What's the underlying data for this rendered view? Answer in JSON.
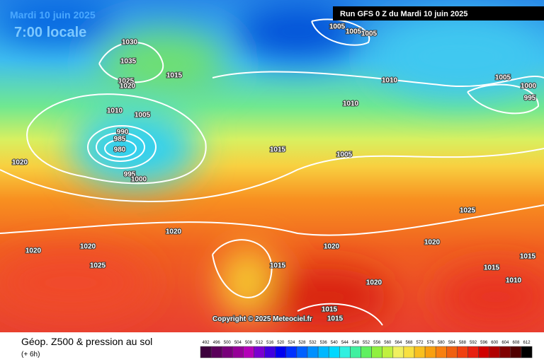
{
  "header": {
    "date": "Mardi 10 juin 2025",
    "time": "7:00 locale",
    "run": "Run GFS 0 Z du Mardi 10 juin 2025"
  },
  "copyright": "Copyright © 2025 Meteociel.fr",
  "footer": {
    "title": "Géop. Z500 & pression au sol",
    "step": "(+ 6h)"
  },
  "isobars": [
    1030,
    1035,
    1025,
    1020,
    1015,
    1010,
    1005,
    990,
    985,
    980,
    995,
    1000,
    1020,
    1020,
    1020,
    1020,
    1025,
    1015,
    1005,
    1005,
    1005,
    1010,
    1010,
    1005,
    1005,
    1000,
    995,
    1025,
    1020,
    1020,
    1015,
    1020,
    1015,
    1015,
    1010,
    1015,
    1015
  ],
  "legend": {
    "ticks": [
      492,
      496,
      500,
      504,
      508,
      512,
      516,
      520,
      524,
      528,
      532,
      536,
      540,
      544,
      548,
      552,
      556,
      560,
      564,
      568,
      572,
      576,
      580,
      584,
      588,
      592,
      596,
      600,
      604,
      608,
      612
    ],
    "colors": [
      "#3c003c",
      "#5a005a",
      "#78007a",
      "#960098",
      "#b400b8",
      "#7a00d0",
      "#4000e0",
      "#0000f0",
      "#0030ff",
      "#0060ff",
      "#0090ff",
      "#00b8ff",
      "#00d8ff",
      "#30f0e0",
      "#40f0a0",
      "#60f060",
      "#90f040",
      "#c0f040",
      "#f0f060",
      "#f8e040",
      "#f8c020",
      "#f8a010",
      "#f88010",
      "#f06010",
      "#f04010",
      "#e82010",
      "#d00000",
      "#b00000",
      "#800000",
      "#500000",
      "#000000"
    ]
  }
}
